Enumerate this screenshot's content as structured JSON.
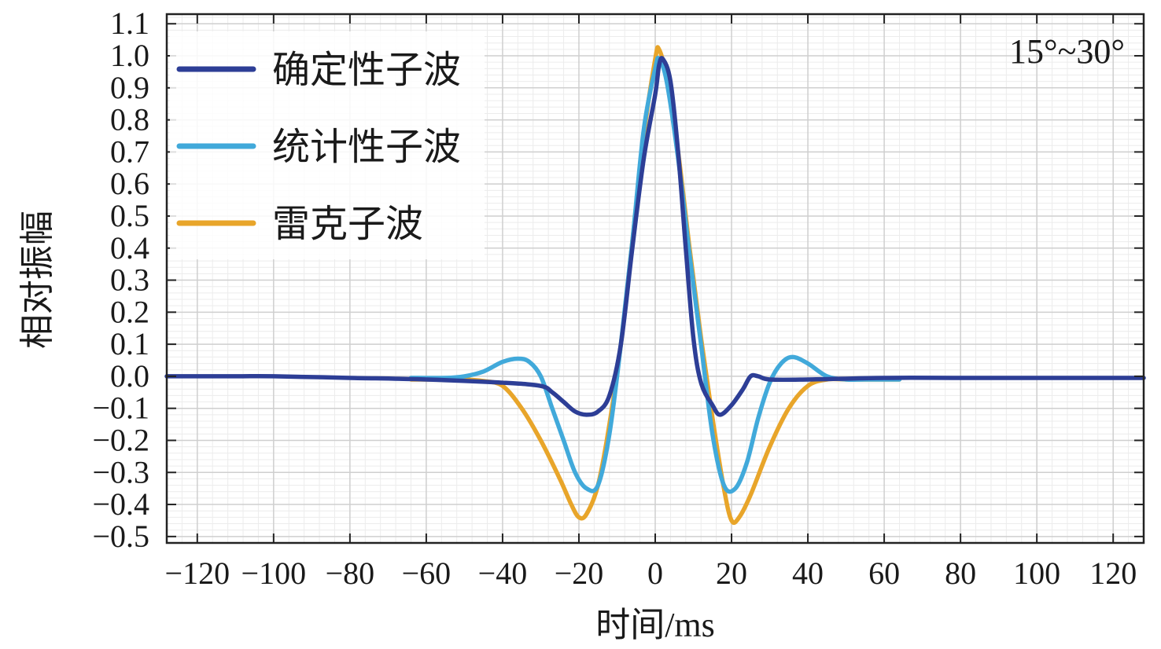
{
  "chart_data": {
    "type": "line",
    "xlabel": "时间/ms",
    "ylabel": "相对振幅",
    "xlim": [
      -128,
      128
    ],
    "ylim": [
      -0.52,
      1.13
    ],
    "x_ticks": [
      -120,
      -100,
      -80,
      -60,
      -40,
      -20,
      0,
      20,
      40,
      60,
      80,
      100,
      120
    ],
    "x_tick_labels": [
      "−120",
      "−100",
      "−80",
      "−60",
      "−40",
      "−20",
      "0",
      "20",
      "40",
      "60",
      "80",
      "100",
      "120"
    ],
    "y_ticks": [
      1.1,
      1.0,
      0.9,
      0.8,
      0.7,
      0.6,
      0.5,
      0.4,
      0.3,
      0.2,
      0.1,
      0.0,
      -0.1,
      -0.2,
      -0.3,
      -0.4,
      -0.5
    ],
    "y_tick_labels": [
      "1.1",
      "1.0",
      "0.9",
      "0.8",
      "0.7",
      "0.6",
      "0.5",
      "0.4",
      "0.3",
      "0.2",
      "0.1",
      "0.0",
      "−0.1",
      "−0.2",
      "−0.3",
      "−0.4",
      "−0.5"
    ],
    "grid": true,
    "legend_position": "top-left",
    "annotation": "15°~30°",
    "series": [
      {
        "name": "雷克子波",
        "color": "#E8A52A",
        "x": [
          -64,
          -55,
          -50,
          -45,
          -40,
          -35,
          -30,
          -25,
          -22,
          -20,
          -18,
          -15,
          -12,
          -9,
          -6,
          -3,
          0,
          1,
          3,
          6,
          9,
          12,
          15,
          18,
          20,
          22,
          25,
          30,
          35,
          40,
          45,
          50,
          55,
          64
        ],
        "y": [
          -0.01,
          -0.01,
          -0.01,
          -0.015,
          -0.03,
          -0.1,
          -0.2,
          -0.32,
          -0.4,
          -0.44,
          -0.43,
          -0.34,
          -0.15,
          0.1,
          0.42,
          0.75,
          0.99,
          1.02,
          0.93,
          0.7,
          0.4,
          0.12,
          -0.13,
          -0.35,
          -0.45,
          -0.44,
          -0.37,
          -0.22,
          -0.1,
          -0.03,
          -0.01,
          -0.01,
          -0.01,
          -0.01
        ]
      },
      {
        "name": "统计性子波",
        "color": "#41A9DA",
        "x": [
          -64,
          -55,
          -50,
          -45,
          -40,
          -36,
          -33,
          -30,
          -27,
          -24,
          -21,
          -18,
          -15,
          -12,
          -9,
          -6,
          -3,
          0,
          1,
          3,
          6,
          9,
          12,
          15,
          18,
          21,
          24,
          27,
          30,
          33,
          36,
          40,
          45,
          50,
          55,
          64
        ],
        "y": [
          -0.005,
          -0.005,
          0.0,
          0.015,
          0.045,
          0.055,
          0.045,
          0.0,
          -0.1,
          -0.2,
          -0.3,
          -0.35,
          -0.34,
          -0.18,
          0.1,
          0.42,
          0.77,
          0.96,
          0.99,
          0.92,
          0.68,
          0.38,
          0.1,
          -0.18,
          -0.34,
          -0.35,
          -0.27,
          -0.13,
          -0.02,
          0.04,
          0.06,
          0.04,
          0.0,
          -0.01,
          -0.01,
          -0.01
        ]
      },
      {
        "name": "确定性子波",
        "color": "#2D3E96",
        "x": [
          -128,
          -110,
          -100,
          -80,
          -60,
          -40,
          -30,
          -27,
          -24,
          -21,
          -18,
          -15,
          -12,
          -9,
          -6,
          -3,
          0,
          1,
          2,
          4,
          6,
          8,
          10,
          12,
          15,
          17,
          20,
          23,
          25,
          27,
          30,
          40,
          60,
          80,
          100,
          110,
          128
        ],
        "y": [
          0.0,
          0.0,
          0.0,
          -0.005,
          -0.01,
          -0.02,
          -0.03,
          -0.05,
          -0.08,
          -0.11,
          -0.12,
          -0.11,
          -0.06,
          0.1,
          0.4,
          0.68,
          0.88,
          0.97,
          0.99,
          0.92,
          0.7,
          0.4,
          0.12,
          -0.02,
          -0.09,
          -0.12,
          -0.09,
          -0.04,
          0.0,
          0.0,
          -0.01,
          -0.01,
          -0.005,
          -0.005,
          -0.005,
          -0.005,
          -0.005
        ]
      }
    ],
    "legend_order": [
      "确定性子波",
      "统计性子波",
      "雷克子波"
    ]
  }
}
